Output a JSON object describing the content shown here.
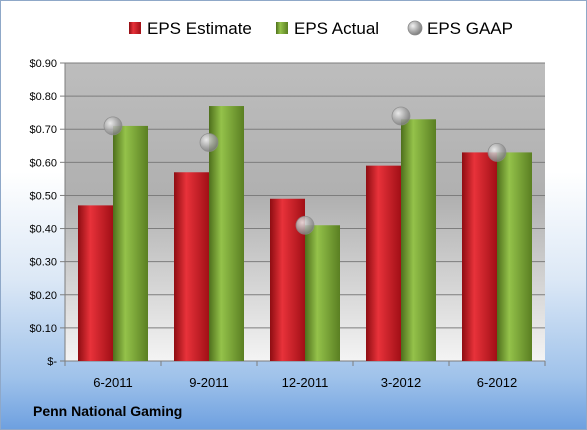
{
  "company": "Penn National Gaming",
  "colors": {
    "estimate": "#c8141e",
    "actual": "#6f9a2c",
    "gaap": "#a8a8a8"
  },
  "chart_data": {
    "type": "bar",
    "categories": [
      "6-2011",
      "9-2011",
      "12-2011",
      "3-2012",
      "6-2012"
    ],
    "series": [
      {
        "name": "EPS Estimate",
        "type": "bar",
        "values": [
          0.47,
          0.57,
          0.49,
          0.59,
          0.63
        ]
      },
      {
        "name": "EPS Actual",
        "type": "bar",
        "values": [
          0.71,
          0.77,
          0.41,
          0.73,
          0.63
        ]
      },
      {
        "name": "EPS GAAP",
        "type": "scatter",
        "values": [
          0.71,
          0.66,
          0.41,
          0.74,
          0.63
        ]
      }
    ],
    "ylim": [
      0,
      0.9
    ],
    "yticks": [
      0,
      0.1,
      0.2,
      0.3,
      0.4,
      0.5,
      0.6,
      0.7,
      0.8,
      0.9
    ],
    "ytick_labels": [
      "$-",
      "$0.10",
      "$0.20",
      "$0.30",
      "$0.40",
      "$0.50",
      "$0.60",
      "$0.70",
      "$0.80",
      "$0.90"
    ],
    "grid": true,
    "legend": "top"
  }
}
